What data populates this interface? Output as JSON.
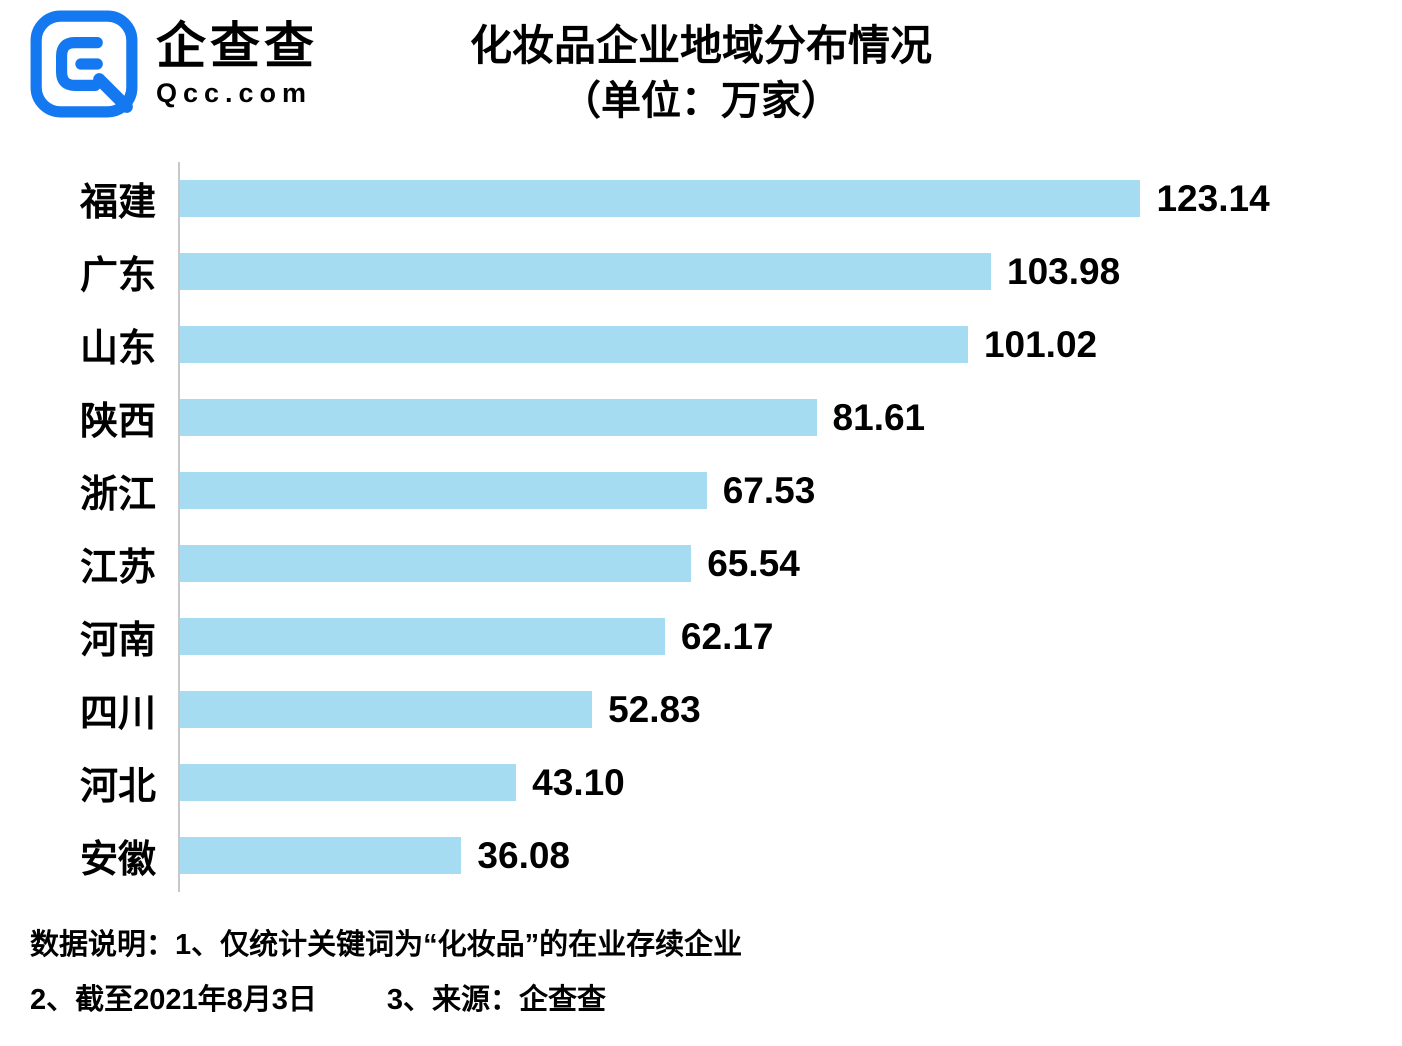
{
  "brand": {
    "logo_text": "企查查",
    "logo_subtext": "Qcc.com"
  },
  "title": {
    "line1": "化妆品企业地域分布情况",
    "line2": "（单位：万家）"
  },
  "chart_data": {
    "type": "bar",
    "orientation": "horizontal",
    "title": "化妆品企业地域分布情况",
    "subtitle": "（单位：万家）",
    "unit": "万家",
    "categories": [
      "福建",
      "广东",
      "山东",
      "陕西",
      "浙江",
      "江苏",
      "河南",
      "四川",
      "河北",
      "安徽"
    ],
    "values": [
      123.14,
      103.98,
      101.02,
      81.61,
      67.53,
      65.54,
      62.17,
      52.83,
      43.1,
      36.08
    ],
    "value_labels": [
      "123.14",
      "103.98",
      "101.02",
      "81.61",
      "67.53",
      "65.54",
      "62.17",
      "52.83",
      "43.10",
      "36.08"
    ],
    "xlim": [
      0,
      130
    ],
    "grid": false,
    "legend": false,
    "bar_color": "#a6dcf2"
  },
  "footnotes": {
    "line1": "数据说明：1、仅统计关键词为“化妆品”的在业存续企业",
    "line2_part1": "2、截至2021年8月3日",
    "line2_part2": "3、来源：企查查"
  },
  "colors": {
    "brand_blue": "#1478f0",
    "bar_blue": "#a6dcf2",
    "axis_gray": "#c8c8c8",
    "text": "#000000"
  }
}
